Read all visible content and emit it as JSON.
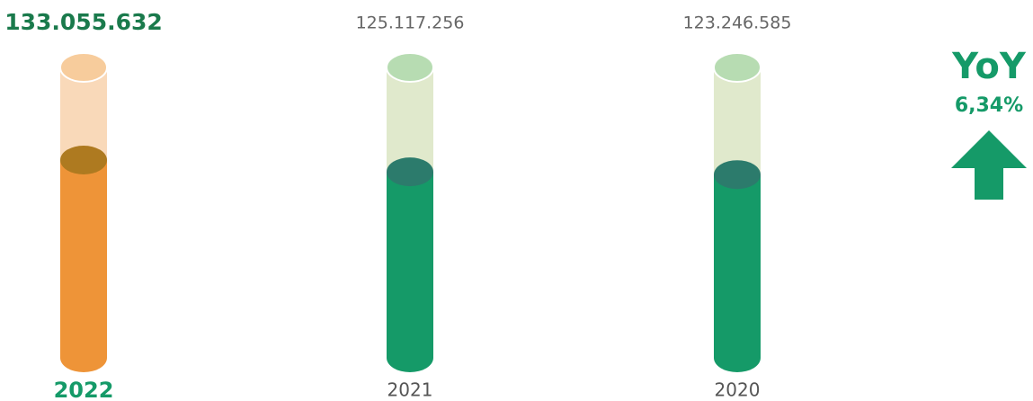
{
  "chart_data": {
    "type": "cylinder",
    "categories": [
      "2022",
      "2021",
      "2020"
    ],
    "values": [
      133055632,
      125117256,
      123246585
    ],
    "value_labels": [
      "133.055.632",
      "125.117.256",
      "123.246.585"
    ],
    "colors": [
      "#ee9438",
      "#159a68",
      "#159a68"
    ],
    "highlight": 0,
    "yoy_title": "YoY",
    "yoy_value": "6,34%",
    "yoy_color": "#159a68"
  }
}
